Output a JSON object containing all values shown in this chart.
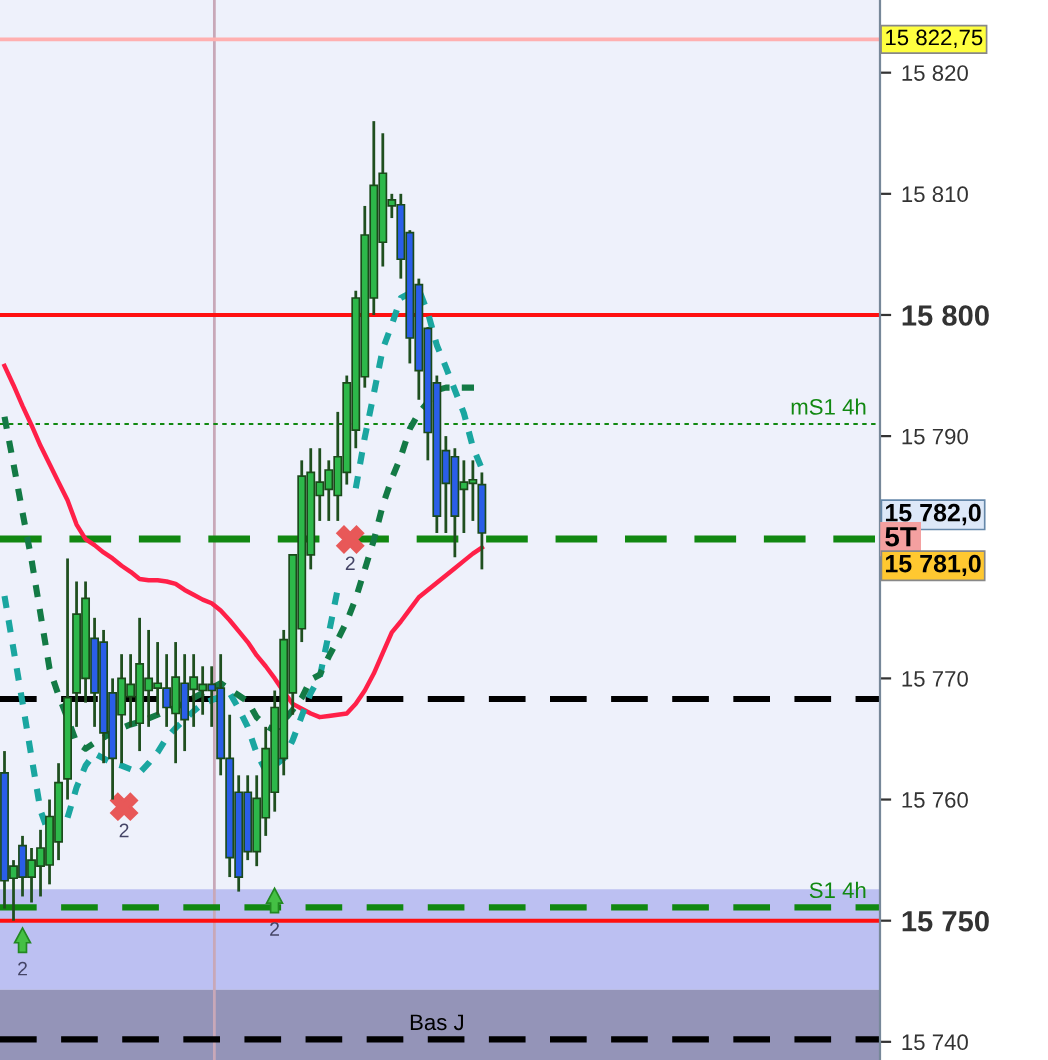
{
  "chart_data": {
    "type": "candlestick",
    "categories": [
      null,
      null,
      null,
      null,
      null,
      null,
      null,
      null,
      null,
      null,
      null,
      null,
      null,
      null,
      null,
      null,
      null,
      null,
      null,
      null,
      null,
      null,
      null,
      null,
      null,
      null,
      null,
      null,
      null,
      null,
      null,
      null,
      null,
      null,
      null,
      null,
      null,
      null,
      null,
      null,
      null,
      null,
      null,
      null,
      null,
      null,
      null,
      null,
      null,
      null,
      null,
      null,
      null,
      null
    ],
    "ohlc": [
      [
        15762.2,
        15764,
        15751,
        15753.3
      ],
      [
        15753.5,
        15755,
        15750,
        15754.5
      ],
      [
        15756.2,
        15757,
        15752,
        15753.6
      ],
      [
        15753.6,
        15756,
        15751.5,
        15755
      ],
      [
        15754.5,
        15757.5,
        15752,
        15756
      ],
      [
        15754.6,
        15760,
        15753,
        15758.6
      ],
      [
        15756.5,
        15763,
        15755,
        15761.4
      ],
      [
        15761.7,
        15779.9,
        15760,
        15768.4
      ],
      [
        15768.8,
        15778,
        15766,
        15775.3
      ],
      [
        15770,
        15778,
        15768,
        15776.6
      ],
      [
        15773.3,
        15775,
        15766,
        15768.8
      ],
      [
        15773,
        15774,
        15763,
        15765.5
      ],
      [
        15768.8,
        15770,
        15760,
        15763.4
      ],
      [
        15767,
        15772,
        15763,
        15770
      ],
      [
        15768.5,
        15772,
        15766,
        15769.5
      ],
      [
        15766.3,
        15775,
        15764,
        15771.2
      ],
      [
        15769,
        15774,
        15766,
        15770
      ],
      [
        15769.2,
        15773,
        15767,
        15769.6
      ],
      [
        15769.2,
        15772,
        15766,
        15767.6
      ],
      [
        15767.1,
        15773,
        15763,
        15770.1
      ],
      [
        15769.6,
        15772,
        15764,
        15766.6
      ],
      [
        15769.1,
        15772,
        15766,
        15770.1
      ],
      [
        15769,
        15771,
        15767,
        15769.5
      ],
      [
        15769.5,
        15771,
        15766,
        15769
      ],
      [
        15769.2,
        15772,
        15762,
        15763.4
      ],
      [
        15763.4,
        15767,
        15753.6,
        15755.2
      ],
      [
        15760.6,
        15762,
        15752.4,
        15753.6
      ],
      [
        15760.6,
        15762,
        15755,
        15755.7
      ],
      [
        15755.7,
        15762,
        15754.5,
        15760.1
      ],
      [
        15758.5,
        15766,
        15757,
        15764.2
      ],
      [
        15760.6,
        15769,
        15759,
        15767.6
      ],
      [
        15763.4,
        15774,
        15762,
        15773.2
      ],
      [
        15768.8,
        15780.2,
        15767,
        15780.2
      ],
      [
        15774.1,
        15788,
        15773,
        15786.7
      ],
      [
        15780.2,
        15789,
        15779,
        15787
      ],
      [
        15785.1,
        15789,
        15783,
        15786.2
      ],
      [
        15785.6,
        15788,
        15783,
        15787.2
      ],
      [
        15785.1,
        15792,
        15783,
        15788.3
      ],
      [
        15787,
        15795,
        15786,
        15794.4
      ],
      [
        15790.5,
        15802,
        15789,
        15801.4
      ],
      [
        15794.9,
        15809,
        15794,
        15806.6
      ],
      [
        15801.4,
        15816,
        15800,
        15810.7
      ],
      [
        15806,
        15815,
        15804,
        15811.7
      ],
      [
        15809,
        15810,
        15808,
        15809.5
      ],
      [
        15809.1,
        15810,
        15803,
        15804.6
      ],
      [
        15806.8,
        15807,
        15796,
        15798.1
      ],
      [
        15802.5,
        15803,
        15793,
        15795.4
      ],
      [
        15798.9,
        15799,
        15788,
        15790.3
      ],
      [
        15794.4,
        15795,
        15782,
        15783.4
      ],
      [
        15788.8,
        15790,
        15782,
        15786.1
      ],
      [
        15788.3,
        15789,
        15780,
        15783.4
      ],
      [
        15785.6,
        15788,
        15782,
        15786.2
      ],
      [
        15786.1,
        15788,
        15783,
        15786.4
      ],
      [
        15786,
        15787,
        15779,
        15782.0
      ]
    ],
    "colors": [
      "#2a5ee8",
      "#2db84a",
      "#2a5ee8",
      "#2db84a",
      "#2db84a",
      "#2db84a",
      "#2db84a",
      "#2db84a",
      "#2db84a",
      "#2db84a",
      "#2a5ee8",
      "#2a5ee8",
      "#2a5ee8",
      "#2db84a",
      "#2db84a",
      "#2db84a",
      "#2db84a",
      "#2db84a",
      "#2a5ee8",
      "#2db84a",
      "#2a5ee8",
      "#2db84a",
      "#2db84a",
      "#2a5ee8",
      "#2a5ee8",
      "#2a5ee8",
      "#2a5ee8",
      "#2a5ee8",
      "#2db84a",
      "#2db84a",
      "#2db84a",
      "#2db84a",
      "#2db84a",
      "#2db84a",
      "#2db84a",
      "#2db84a",
      "#2db84a",
      "#2db84a",
      "#2db84a",
      "#2db84a",
      "#2db84a",
      "#2db84a",
      "#2db84a",
      "#2db84a",
      "#2a5ee8",
      "#2a5ee8",
      "#2a5ee8",
      "#2a5ee8",
      "#2a5ee8",
      "#2a5ee8",
      "#2a5ee8",
      "#2db84a",
      "#2db84a",
      "#2a5ee8"
    ],
    "series": [
      {
        "type": "line",
        "color": "#ff2048",
        "line_style": "solid",
        "values": [
          15795.8,
          15794.2,
          15792.5,
          15790.9,
          15789.2,
          15787.7,
          15786.2,
          15784.7,
          15782.7,
          15781.5,
          15781,
          15780.4,
          15779.9,
          15779.3,
          15778.8,
          15778.2,
          15778.1,
          15778.1,
          15778,
          15777.8,
          15777.3,
          15776.9,
          15776.5,
          15776.2,
          15775.6,
          15774.8,
          15773.9,
          15773,
          15771.9,
          15771,
          15770,
          15768.9,
          15767.9,
          15767.5,
          15767.1,
          15766.8,
          15766.9,
          15767,
          15767.1,
          15767.9,
          15769,
          15770.4,
          15772.1,
          15773.8,
          15774.7,
          15775.7,
          15776.7,
          15777.3,
          15777.9,
          15778.5,
          15779.1,
          15779.7,
          15780.3,
          15780.8
        ]
      },
      {
        "type": "line",
        "color": "#1aa6a0",
        "line_style": "dotted",
        "values": [
          15776.8,
          15772.4,
          15768,
          15763.5,
          15759.1,
          15757,
          null,
          15758.5,
          15761,
          15762.8,
          15763.8,
          15763.4,
          15763,
          15762.8,
          15762.5,
          15762.2,
          15763,
          15763.9,
          15765.1,
          15765.9,
          15766.6,
          15767.3,
          15767.9,
          15768.2,
          15768.5,
          15768.8,
          15767.5,
          15766,
          15763.8,
          15762.4,
          15762.8,
          15763.4,
          15764.9,
          15766.9,
          15768.8,
          15770.1,
          15773.7,
          15777.4,
          null,
          15785.7,
          15789.9,
          15793.5,
          15797.2,
          15799.2,
          15801.4,
          15801.8,
          15802.1,
          15800.2,
          15797.5,
          15795.7,
          15793.8,
          15791.9,
          15789.1,
          15787.3
        ]
      },
      {
        "type": "line",
        "color": "#137a45",
        "line_style": "dotted",
        "values": [
          15791.6,
          15787.7,
          15783.7,
          15779.8,
          15775.3,
          15770.8,
          15768.6,
          15766.7,
          15764.7,
          15764.2,
          15764.7,
          15765.1,
          15765.6,
          15765.9,
          15766.2,
          15766.4,
          15766.7,
          15767,
          15767.3,
          15767.6,
          15768,
          15768.4,
          15768.8,
          15769.2,
          15769.6,
          15769.1,
          15768.6,
          15768.1,
          15766.8,
          15766.1,
          15765.7,
          15766.5,
          15767.4,
          15768.4,
          15769.9,
          15770.3,
          15771.8,
          15773.2,
          15774.7,
          15776.6,
          15779,
          15781.4,
          15784.3,
          15786.5,
          15788.3,
          15790.6,
          15791.9,
          15792.8,
          15793.8,
          15794,
          15794,
          15794,
          15794,
          15794
        ]
      }
    ],
    "ylim": [
      15738.5,
      15826
    ],
    "yticks": [
      {
        "value": 15740,
        "label": "15 740"
      },
      {
        "value": 15750,
        "label": "15 750"
      },
      {
        "value": 15760,
        "label": "15 760"
      },
      {
        "value": 15770,
        "label": "15 770"
      },
      {
        "value": 15790,
        "label": "15 790"
      },
      {
        "value": 15800,
        "label": "15 800"
      },
      {
        "value": 15810,
        "label": "15 810"
      },
      {
        "value": 15820,
        "label": "15 820"
      }
    ],
    "tick_labels": "y",
    "grid": false,
    "legend": false,
    "bands": [
      {
        "axis": "y",
        "from": 15744.3,
        "to": 15752.6,
        "color": "#bcc0f2"
      },
      {
        "axis": "y",
        "from": 15738.5,
        "to": 15744.3,
        "color": "#9494b8"
      }
    ],
    "ref_lines": [
      {
        "axis": "y",
        "value": 15800,
        "color": "#ff1010",
        "line_style": "solid"
      },
      {
        "axis": "y",
        "value": 15750,
        "color": "#ff1010",
        "line_style": "solid"
      },
      {
        "axis": "y",
        "value": 15781.5,
        "color": "#118811",
        "line_style": "dashed"
      },
      {
        "axis": "y",
        "value": 15791,
        "color": "#118811",
        "line_style": "dotted",
        "label": "mS1 4h"
      },
      {
        "axis": "y",
        "value": 15751.1,
        "color": "#118811",
        "line_style": "dashed",
        "label": "S1 4h"
      },
      {
        "axis": "y",
        "value": 15768.3,
        "color": "#000000",
        "line_style": "dashed"
      },
      {
        "axis": "y",
        "value": 15740.2,
        "color": "#000000",
        "line_style": "dashed",
        "label": "Bas J"
      },
      {
        "axis": "y",
        "value": 15822.75,
        "color": "#ffb0b0",
        "line_style": "solid",
        "label": "15 822,75"
      }
    ],
    "annotations": [
      "2",
      "2",
      "2",
      "2",
      "15 782,0",
      "5T",
      "15 781,0"
    ]
  }
}
